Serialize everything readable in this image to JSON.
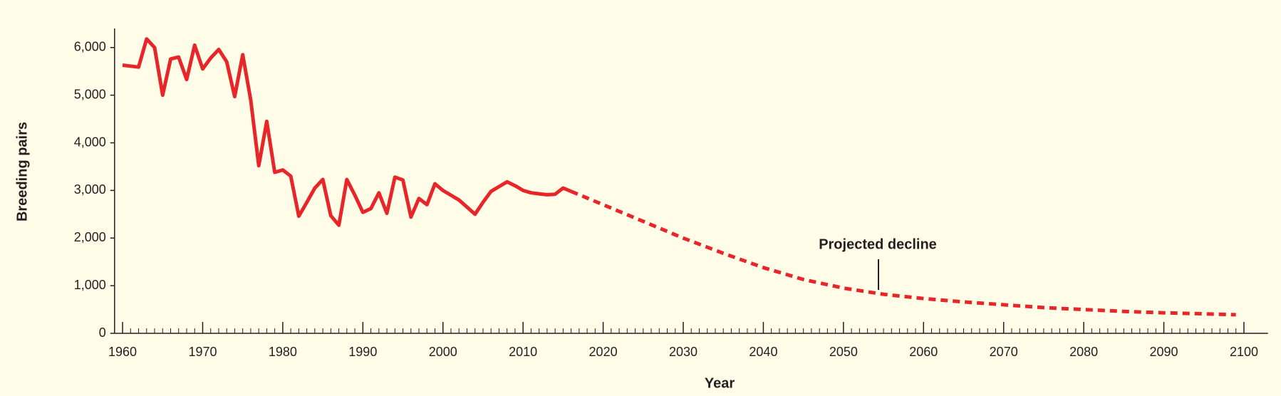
{
  "chart_data": {
    "type": "line",
    "xlabel": "Year",
    "ylabel": "Breeding pairs",
    "annotation": "Projected decline",
    "xlim": [
      1959,
      2103
    ],
    "xticks": [
      1960,
      1970,
      1980,
      1990,
      2000,
      2010,
      2020,
      2030,
      2040,
      2050,
      2060,
      2070,
      2080,
      2090,
      2100
    ],
    "ylim": [
      0,
      6400
    ],
    "yticks": [
      0,
      {
        "value": 1000,
        "label": "1,000"
      },
      {
        "value": 2000,
        "label": "2,000"
      },
      {
        "value": 3000,
        "label": "3,000"
      },
      {
        "value": 4000,
        "label": "4,000"
      },
      {
        "value": 5000,
        "label": "5,000"
      },
      {
        "value": 6000,
        "label": "6,000"
      }
    ],
    "series": [
      {
        "color": "#e8262a",
        "style": "solid",
        "x": [
          1960,
          1961,
          1962,
          1963,
          1964,
          1965,
          1966,
          1967,
          1968,
          1969,
          1970,
          1971,
          1972,
          1973,
          1974,
          1975,
          1976,
          1977,
          1978,
          1979,
          1980,
          1981,
          1982,
          1983,
          1984,
          1985,
          1986,
          1987,
          1988,
          1989,
          1990,
          1991,
          1992,
          1993,
          1994,
          1995,
          1996,
          1997,
          1998,
          1999,
          2000,
          2001,
          2002,
          2003,
          2004,
          2005,
          2006,
          2007,
          2008,
          2009,
          2010,
          2011,
          2012,
          2013,
          2014,
          2015,
          2016
        ],
        "values": [
          5630,
          5610,
          5590,
          6180,
          6000,
          5000,
          5760,
          5800,
          5330,
          6050,
          5550,
          5780,
          5960,
          5700,
          4970,
          5850,
          4900,
          3520,
          4450,
          3380,
          3430,
          3300,
          2460,
          2750,
          3050,
          3230,
          2470,
          2270,
          3230,
          2900,
          2540,
          2620,
          2950,
          2520,
          3280,
          3220,
          2440,
          2830,
          2700,
          3140,
          3000,
          2900,
          2800,
          2650,
          2500,
          2750,
          2980,
          3080,
          3180,
          3100,
          3000,
          2950,
          2930,
          2910,
          2920,
          3050,
          2980
        ]
      },
      {
        "color": "#e8262a",
        "style": "dashed",
        "x": [
          2016,
          2020,
          2025,
          2030,
          2035,
          2040,
          2045,
          2050,
          2055,
          2060,
          2065,
          2070,
          2075,
          2080,
          2085,
          2090,
          2095,
          2099
        ],
        "values": [
          2980,
          2700,
          2350,
          2000,
          1680,
          1380,
          1130,
          950,
          820,
          730,
          660,
          600,
          540,
          500,
          460,
          430,
          410,
          390
        ]
      }
    ]
  }
}
